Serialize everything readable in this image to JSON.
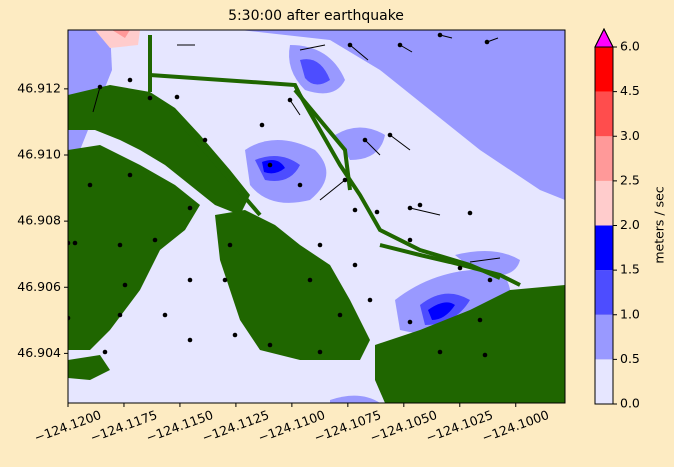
{
  "chart_data": {
    "type": "map",
    "title": "5:30:00 after earthquake",
    "xlim": [
      -124.12,
      -124.0978
    ],
    "ylim": [
      46.9025,
      46.91378
    ],
    "xticks": [
      {
        "value": -124.12,
        "label": "−124.1200"
      },
      {
        "value": -124.1175,
        "label": "−124.1175"
      },
      {
        "value": -124.115,
        "label": "−124.1150"
      },
      {
        "value": -124.1125,
        "label": "−124.1125"
      },
      {
        "value": -124.11,
        "label": "−124.1100"
      },
      {
        "value": -124.1075,
        "label": "−124.1075"
      },
      {
        "value": -124.105,
        "label": "−124.1050"
      },
      {
        "value": -124.1025,
        "label": "−124.1025"
      },
      {
        "value": -124.1,
        "label": "−124.1000"
      }
    ],
    "yticks": [
      46.904,
      46.906,
      46.908,
      {
        "value": 46.91,
        "label": "46.910"
      },
      46.912
    ],
    "colorbar": {
      "label": "meters / sec",
      "ticks": [
        {
          "value": 0,
          "label": "0.0"
        },
        {
          "value": 0.5,
          "label": "0.5"
        },
        {
          "value": 1,
          "label": "1.0"
        },
        {
          "value": 1.5,
          "label": "1.5"
        },
        {
          "value": 2,
          "label": "2.0"
        },
        {
          "value": 2.5,
          "label": "2.5"
        },
        {
          "value": 3,
          "label": "3.0"
        },
        {
          "value": 4.5,
          "label": "4.5"
        },
        {
          "value": 6,
          "label": "6.0"
        }
      ],
      "colors": [
        "#e6e6ff",
        "#9999ff",
        "#4d4dff",
        "#0000ff",
        "#ffcccc",
        "#ff9999",
        "#ff4d4d",
        "#ff0000"
      ],
      "extend_color": "#ff00ff"
    },
    "land_color": "#1f6600"
  }
}
